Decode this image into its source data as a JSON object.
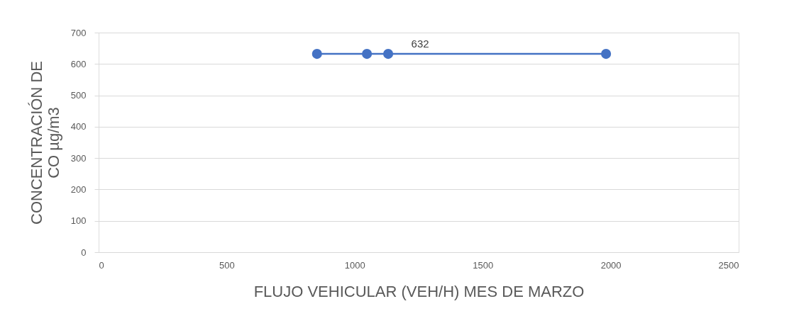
{
  "chart_data": {
    "type": "line",
    "xlabel": "FLUJO VEHICULAR (VEH/H) MES DE MARZO",
    "ylabel": "CONCENTRACIÓN  DE\nCO  µg/m3",
    "x": [
      853,
      1048,
      1131,
      1982
    ],
    "series": [
      {
        "color": "#4472c4",
        "values": [
          632,
          632,
          632,
          632
        ],
        "value_labels": [
          null,
          null,
          "632",
          null
        ]
      }
    ],
    "xlim": [
      0,
      2500
    ],
    "xticks": [
      0,
      500,
      1000,
      1500,
      2000,
      2500
    ],
    "ylim": [
      0,
      700
    ],
    "yticks": [
      0,
      100,
      200,
      300,
      400,
      500,
      600,
      700
    ],
    "grid": "y",
    "marker": "circle"
  }
}
